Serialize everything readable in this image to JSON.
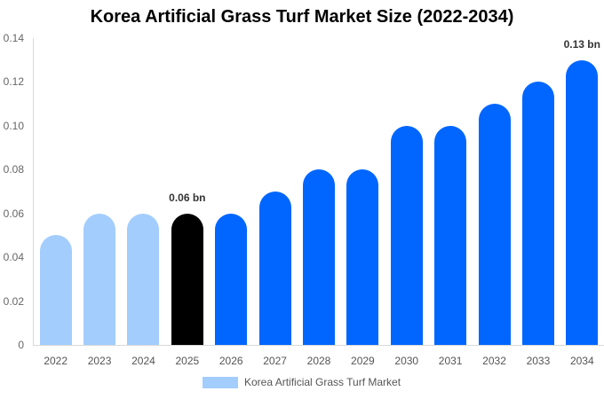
{
  "chart_data": {
    "type": "bar",
    "title": "Korea Artificial Grass Turf Market Size (2022-2034)",
    "xlabel": "",
    "ylabel": "",
    "categories": [
      "2022",
      "2023",
      "2024",
      "2025",
      "2026",
      "2027",
      "2028",
      "2029",
      "2030",
      "2031",
      "2032",
      "2033",
      "2034"
    ],
    "series": [
      {
        "name": "Korea Artificial Grass Turf Market",
        "values": [
          0.05,
          0.06,
          0.06,
          0.06,
          0.06,
          0.07,
          0.08,
          0.08,
          0.1,
          0.1,
          0.11,
          0.12,
          0.13
        ]
      }
    ],
    "bar_colors": [
      "#a3cdfd",
      "#a3cdfd",
      "#a3cdfd",
      "#000000",
      "#0066ff",
      "#0066ff",
      "#0066ff",
      "#0066ff",
      "#0066ff",
      "#0066ff",
      "#0066ff",
      "#0066ff",
      "#0066ff"
    ],
    "annotations": [
      {
        "category": "2025",
        "text": "0.06 bn"
      },
      {
        "category": "2034",
        "text": "0.13 bn"
      }
    ],
    "ylim": [
      0,
      0.14
    ],
    "yticks": [
      "0",
      "0.02",
      "0.04",
      "0.06",
      "0.08",
      "0.10",
      "0.12",
      "0.14"
    ],
    "grid": false,
    "legend_position": "bottom"
  },
  "legend": {
    "label": "Korea Artificial Grass Turf Market",
    "color": "#a3cdfd"
  }
}
